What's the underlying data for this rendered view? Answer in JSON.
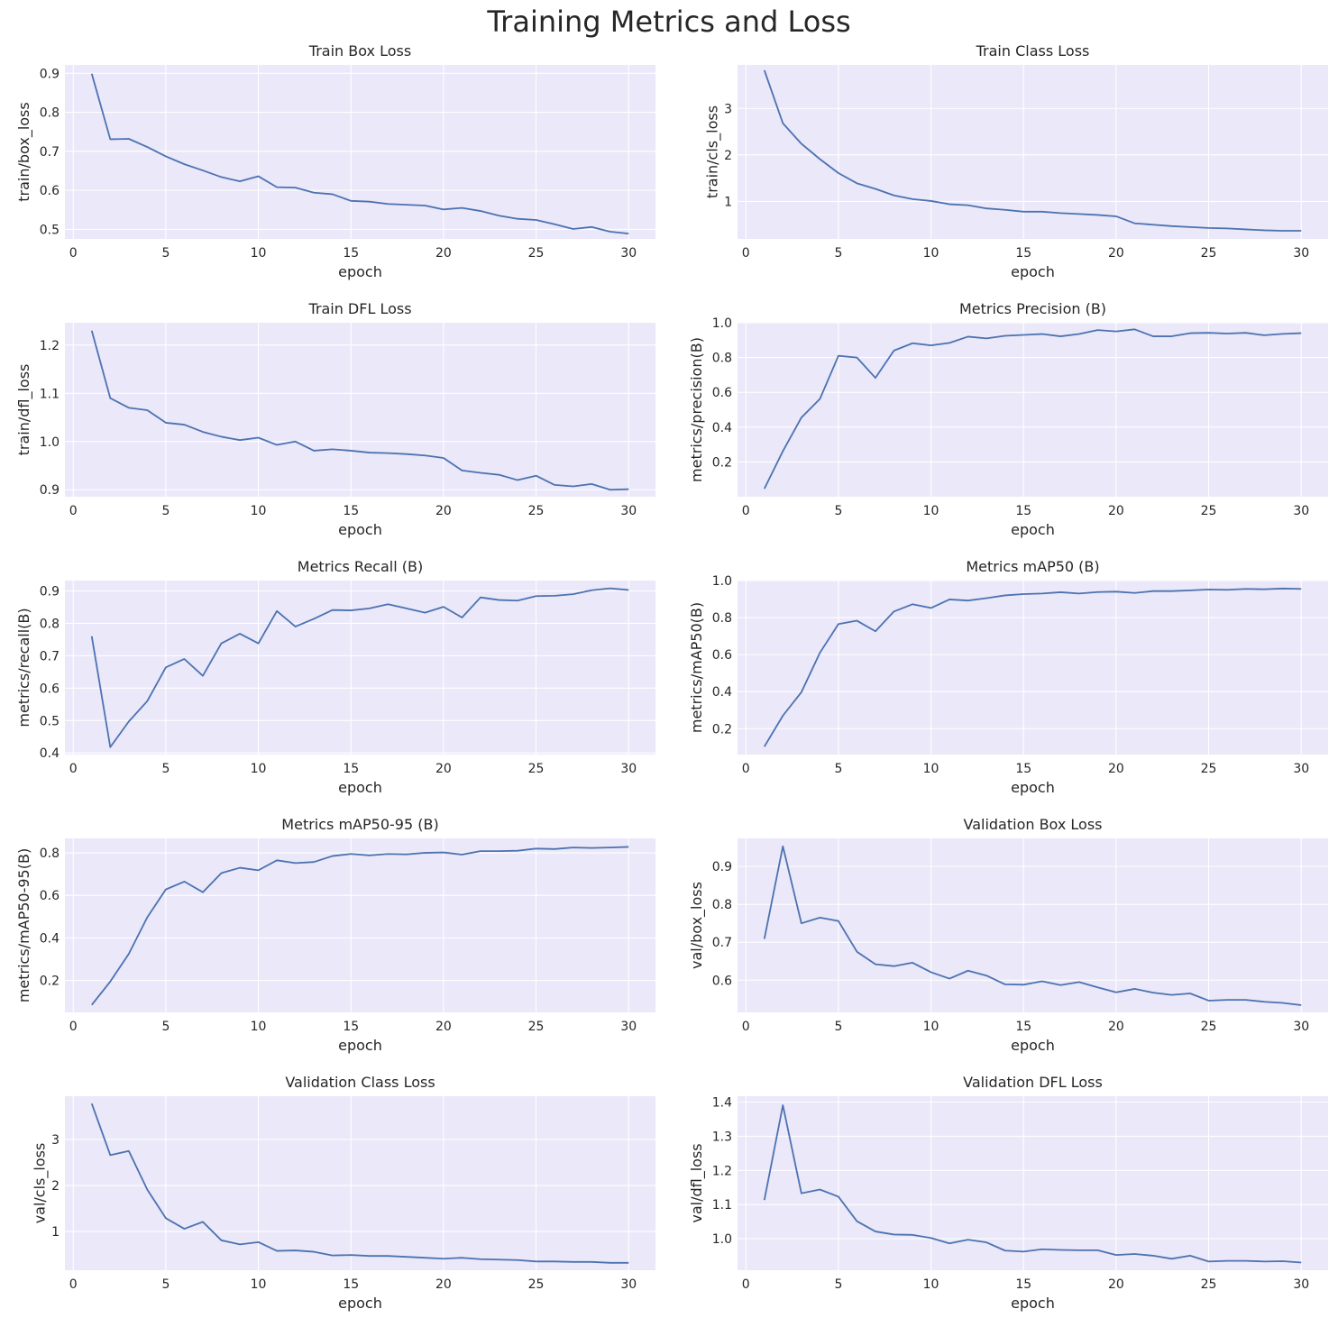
{
  "figure_title": "Training Metrics and Loss",
  "colors": {
    "background": "#ffffff",
    "plot_background": "#eae8f9",
    "grid": "#ffffff",
    "line": "#4c72b0",
    "text": "#262626"
  },
  "chart_data": [
    {
      "type": "line",
      "title": "Train Box Loss",
      "xlabel": "epoch",
      "ylabel": "train/box_loss",
      "xlim": [
        -0.45,
        31.45
      ],
      "ylim": [
        0.4755,
        0.9215
      ],
      "xticks": [
        0,
        5,
        10,
        15,
        20,
        25,
        30
      ],
      "yticks": [
        0.5,
        0.6,
        0.7,
        0.8,
        0.9
      ],
      "ytick_decimals": 1,
      "x": [
        1,
        2,
        3,
        4,
        5,
        6,
        7,
        8,
        9,
        10,
        11,
        12,
        13,
        14,
        15,
        16,
        17,
        18,
        19,
        20,
        21,
        22,
        23,
        24,
        25,
        26,
        27,
        28,
        29,
        30
      ],
      "y": [
        0.899,
        0.731,
        0.732,
        0.711,
        0.687,
        0.667,
        0.651,
        0.634,
        0.623,
        0.636,
        0.608,
        0.607,
        0.594,
        0.59,
        0.573,
        0.571,
        0.565,
        0.563,
        0.561,
        0.551,
        0.555,
        0.547,
        0.535,
        0.527,
        0.524,
        0.513,
        0.501,
        0.506,
        0.494,
        0.489
      ]
    },
    {
      "type": "line",
      "title": "Train Class Loss",
      "xlabel": "epoch",
      "ylabel": "train/cls_loss",
      "xlim": [
        -0.45,
        31.45
      ],
      "ylim": [
        0.195,
        3.935
      ],
      "xticks": [
        0,
        5,
        10,
        15,
        20,
        25,
        30
      ],
      "yticks": [
        1,
        2,
        3
      ],
      "ytick_decimals": 0,
      "x": [
        1,
        2,
        3,
        4,
        5,
        6,
        7,
        8,
        9,
        10,
        11,
        12,
        13,
        14,
        15,
        16,
        17,
        18,
        19,
        20,
        21,
        22,
        23,
        24,
        25,
        26,
        27,
        28,
        29,
        30
      ],
      "y": [
        3.82,
        2.68,
        2.24,
        1.91,
        1.61,
        1.39,
        1.27,
        1.13,
        1.05,
        1.01,
        0.94,
        0.92,
        0.85,
        0.82,
        0.78,
        0.78,
        0.75,
        0.73,
        0.71,
        0.68,
        0.53,
        0.5,
        0.47,
        0.45,
        0.43,
        0.42,
        0.4,
        0.38,
        0.37,
        0.37
      ]
    },
    {
      "type": "line",
      "title": "Train DFL Loss",
      "xlabel": "epoch",
      "ylabel": "train/dfl_loss",
      "xlim": [
        -0.45,
        31.45
      ],
      "ylim": [
        0.8855,
        1.2465
      ],
      "xticks": [
        0,
        5,
        10,
        15,
        20,
        25,
        30
      ],
      "yticks": [
        0.9,
        1.0,
        1.1,
        1.2
      ],
      "ytick_decimals": 1,
      "x": [
        1,
        2,
        3,
        4,
        5,
        6,
        7,
        8,
        9,
        10,
        11,
        12,
        13,
        14,
        15,
        16,
        17,
        18,
        19,
        20,
        21,
        22,
        23,
        24,
        25,
        26,
        27,
        28,
        29,
        30
      ],
      "y": [
        1.23,
        1.09,
        1.07,
        1.065,
        1.039,
        1.035,
        1.02,
        1.01,
        1.003,
        1.008,
        0.993,
        1.0,
        0.981,
        0.984,
        0.981,
        0.977,
        0.976,
        0.974,
        0.971,
        0.966,
        0.94,
        0.935,
        0.931,
        0.92,
        0.929,
        0.91,
        0.907,
        0.912,
        0.9,
        0.901
      ]
    },
    {
      "type": "line",
      "title": "Metrics Precision (B)",
      "xlabel": "epoch",
      "ylabel": "metrics/precision(B)",
      "xlim": [
        -0.45,
        31.45
      ],
      "ylim": [
        0.0,
        1.0
      ],
      "xticks": [
        0,
        5,
        10,
        15,
        20,
        25,
        30
      ],
      "yticks": [
        0.2,
        0.4,
        0.6,
        0.8,
        1.0
      ],
      "ytick_decimals": 1,
      "x": [
        1,
        2,
        3,
        4,
        5,
        6,
        7,
        8,
        9,
        10,
        11,
        12,
        13,
        14,
        15,
        16,
        17,
        18,
        19,
        20,
        21,
        22,
        23,
        24,
        25,
        26,
        27,
        28,
        29,
        30
      ],
      "y": [
        0.046,
        0.262,
        0.455,
        0.562,
        0.81,
        0.8,
        0.683,
        0.84,
        0.882,
        0.87,
        0.884,
        0.92,
        0.91,
        0.925,
        0.93,
        0.935,
        0.922,
        0.935,
        0.958,
        0.95,
        0.962,
        0.922,
        0.922,
        0.94,
        0.942,
        0.938,
        0.942,
        0.928,
        0.936,
        0.94
      ]
    },
    {
      "type": "line",
      "title": "Metrics Recall (B)",
      "xlabel": "epoch",
      "ylabel": "metrics/recall(B)",
      "xlim": [
        -0.45,
        31.45
      ],
      "ylim": [
        0.395,
        0.932
      ],
      "xticks": [
        0,
        5,
        10,
        15,
        20,
        25,
        30
      ],
      "yticks": [
        0.4,
        0.5,
        0.6,
        0.7,
        0.8,
        0.9
      ],
      "ytick_decimals": 1,
      "x": [
        1,
        2,
        3,
        4,
        5,
        6,
        7,
        8,
        9,
        10,
        11,
        12,
        13,
        14,
        15,
        16,
        17,
        18,
        19,
        20,
        21,
        22,
        23,
        24,
        25,
        26,
        27,
        28,
        29,
        30
      ],
      "y": [
        0.76,
        0.418,
        0.497,
        0.56,
        0.664,
        0.69,
        0.638,
        0.738,
        0.768,
        0.738,
        0.838,
        0.79,
        0.814,
        0.841,
        0.84,
        0.846,
        0.859,
        0.846,
        0.833,
        0.851,
        0.818,
        0.88,
        0.872,
        0.87,
        0.884,
        0.885,
        0.89,
        0.902,
        0.908,
        0.903
      ]
    },
    {
      "type": "line",
      "title": "Metrics mAP50 (B)",
      "xlabel": "epoch",
      "ylabel": "metrics/mAP50(B)",
      "xlim": [
        -0.45,
        31.45
      ],
      "ylim": [
        0.06,
        1.0
      ],
      "xticks": [
        0,
        5,
        10,
        15,
        20,
        25,
        30
      ],
      "yticks": [
        0.2,
        0.4,
        0.6,
        0.8,
        1.0
      ],
      "ytick_decimals": 1,
      "x": [
        1,
        2,
        3,
        4,
        5,
        6,
        7,
        8,
        9,
        10,
        11,
        12,
        13,
        14,
        15,
        16,
        17,
        18,
        19,
        20,
        21,
        22,
        23,
        24,
        25,
        26,
        27,
        28,
        29,
        30
      ],
      "y": [
        0.103,
        0.27,
        0.397,
        0.61,
        0.765,
        0.783,
        0.726,
        0.833,
        0.872,
        0.852,
        0.898,
        0.892,
        0.905,
        0.92,
        0.927,
        0.93,
        0.937,
        0.93,
        0.938,
        0.94,
        0.933,
        0.943,
        0.943,
        0.947,
        0.952,
        0.95,
        0.955,
        0.953,
        0.957,
        0.955
      ]
    },
    {
      "type": "line",
      "title": "Metrics mAP50-95 (B)",
      "xlabel": "epoch",
      "ylabel": "metrics/mAP50-95(B)",
      "xlim": [
        -0.45,
        31.45
      ],
      "ylim": [
        0.05,
        0.868
      ],
      "xticks": [
        0,
        5,
        10,
        15,
        20,
        25,
        30
      ],
      "yticks": [
        0.2,
        0.4,
        0.6,
        0.8
      ],
      "ytick_decimals": 1,
      "x": [
        1,
        2,
        3,
        4,
        5,
        6,
        7,
        8,
        9,
        10,
        11,
        12,
        13,
        14,
        15,
        16,
        17,
        18,
        19,
        20,
        21,
        22,
        23,
        24,
        25,
        26,
        27,
        28,
        29,
        30
      ],
      "y": [
        0.085,
        0.195,
        0.325,
        0.497,
        0.628,
        0.665,
        0.615,
        0.705,
        0.73,
        0.718,
        0.765,
        0.752,
        0.757,
        0.785,
        0.795,
        0.788,
        0.795,
        0.793,
        0.8,
        0.802,
        0.792,
        0.808,
        0.808,
        0.81,
        0.82,
        0.818,
        0.825,
        0.823,
        0.825,
        0.828
      ]
    },
    {
      "type": "line",
      "title": "Validation Box Loss",
      "xlabel": "epoch",
      "ylabel": "val/box_loss",
      "xlim": [
        -0.45,
        31.45
      ],
      "ylim": [
        0.515,
        0.974
      ],
      "xticks": [
        0,
        5,
        10,
        15,
        20,
        25,
        30
      ],
      "yticks": [
        0.6,
        0.7,
        0.8,
        0.9
      ],
      "ytick_decimals": 1,
      "x": [
        1,
        2,
        3,
        4,
        5,
        6,
        7,
        8,
        9,
        10,
        11,
        12,
        13,
        14,
        15,
        16,
        17,
        18,
        19,
        20,
        21,
        22,
        23,
        24,
        25,
        26,
        27,
        28,
        29,
        30
      ],
      "y": [
        0.709,
        0.953,
        0.75,
        0.765,
        0.756,
        0.675,
        0.642,
        0.637,
        0.646,
        0.621,
        0.604,
        0.625,
        0.612,
        0.589,
        0.588,
        0.597,
        0.587,
        0.595,
        0.581,
        0.568,
        0.577,
        0.567,
        0.561,
        0.565,
        0.546,
        0.548,
        0.548,
        0.543,
        0.54,
        0.534
      ]
    },
    {
      "type": "line",
      "title": "Validation Class Loss",
      "xlabel": "epoch",
      "ylabel": "val/cls_loss",
      "xlim": [
        -0.45,
        31.45
      ],
      "ylim": [
        0.16,
        3.94
      ],
      "xticks": [
        0,
        5,
        10,
        15,
        20,
        25,
        30
      ],
      "yticks": [
        1,
        2,
        3
      ],
      "ytick_decimals": 0,
      "x": [
        1,
        2,
        3,
        4,
        5,
        6,
        7,
        8,
        9,
        10,
        11,
        12,
        13,
        14,
        15,
        16,
        17,
        18,
        19,
        20,
        21,
        22,
        23,
        24,
        25,
        26,
        27,
        28,
        29,
        30
      ],
      "y": [
        3.78,
        2.66,
        2.75,
        1.91,
        1.29,
        1.06,
        1.21,
        0.81,
        0.72,
        0.77,
        0.58,
        0.59,
        0.56,
        0.48,
        0.49,
        0.47,
        0.47,
        0.45,
        0.43,
        0.41,
        0.43,
        0.4,
        0.39,
        0.38,
        0.35,
        0.35,
        0.34,
        0.34,
        0.32,
        0.32
      ]
    },
    {
      "type": "line",
      "title": "Validation DFL Loss",
      "xlabel": "epoch",
      "ylabel": "val/dfl_loss",
      "xlim": [
        -0.45,
        31.45
      ],
      "ylim": [
        0.9075,
        1.4175
      ],
      "xticks": [
        0,
        5,
        10,
        15,
        20,
        25,
        30
      ],
      "yticks": [
        1.0,
        1.1,
        1.2,
        1.3,
        1.4
      ],
      "ytick_decimals": 1,
      "x": [
        1,
        2,
        3,
        4,
        5,
        6,
        7,
        8,
        9,
        10,
        11,
        12,
        13,
        14,
        15,
        16,
        17,
        18,
        19,
        20,
        21,
        22,
        23,
        24,
        25,
        26,
        27,
        28,
        29,
        30
      ],
      "y": [
        1.113,
        1.391,
        1.133,
        1.144,
        1.123,
        1.051,
        1.021,
        1.012,
        1.011,
        1.002,
        0.986,
        0.997,
        0.989,
        0.965,
        0.962,
        0.969,
        0.967,
        0.966,
        0.966,
        0.952,
        0.955,
        0.95,
        0.941,
        0.95,
        0.933,
        0.935,
        0.935,
        0.933,
        0.934,
        0.93
      ]
    }
  ]
}
